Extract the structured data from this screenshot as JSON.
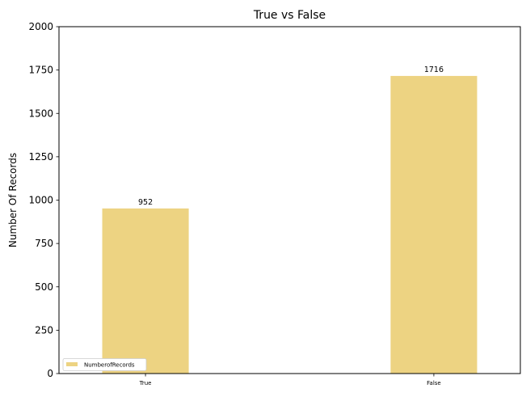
{
  "chart_data": {
    "type": "bar",
    "title": "True vs False",
    "xlabel": "",
    "ylabel": "Number Of Records",
    "categories": [
      "True",
      "False"
    ],
    "series": [
      {
        "name": "NumberofRecords",
        "values": [
          952,
          1716
        ],
        "color": "#EDD382"
      }
    ],
    "data_labels": [
      "952",
      "1716"
    ],
    "ylim": [
      0,
      2000
    ],
    "yticks": [
      0,
      250,
      500,
      750,
      1000,
      1250,
      1500,
      1750,
      2000
    ],
    "ytick_labels": [
      "0",
      "250",
      "500",
      "750",
      "1000",
      "1250",
      "1500",
      "1750",
      "2000"
    ],
    "grid": false,
    "legend_position": "lower-left"
  }
}
